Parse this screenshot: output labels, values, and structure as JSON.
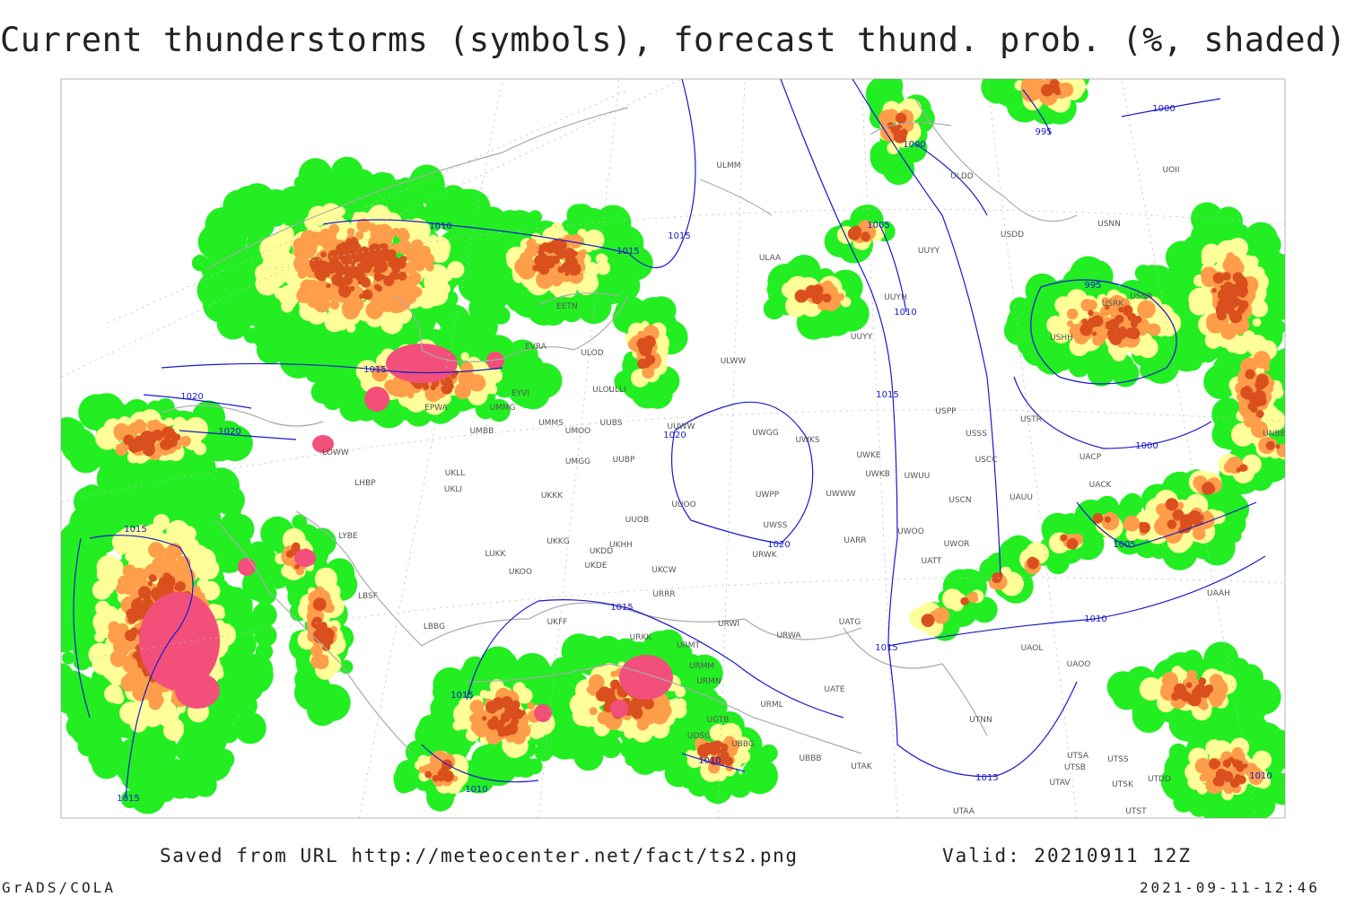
{
  "header": {
    "title": "Current thunderstorms (symbols), forecast thund. prob. (%, shaded)"
  },
  "isobars": [
    "1010",
    "1015",
    "1015",
    "1015",
    "1020",
    "1020",
    "1015",
    "1020",
    "1020",
    "1015",
    "1015",
    "1010",
    "1010",
    "1015",
    "1015",
    "1015",
    "1015",
    "1010",
    "1005",
    "1000",
    "995",
    "1000",
    "995",
    "1000",
    "1005",
    "1010",
    "1010"
  ],
  "stations": [
    "ULMM",
    "ULDD",
    "USDD",
    "ULAA",
    "UUYY",
    "UUYH",
    "UUYY",
    "ULWW",
    "ULOD",
    "ULOL",
    "EETN",
    "EVRA",
    "EYVI",
    "EPWA",
    "UMMG",
    "UMMS",
    "UMOO",
    "UUBS",
    "UMBB",
    "UWGG",
    "UWKS",
    "UWKE",
    "UWKB",
    "UWUU",
    "USSS",
    "USCC",
    "USTR",
    "UUWW",
    "UMGG",
    "UUBP",
    "UKLL",
    "UKLI",
    "UKKK",
    "UUOO",
    "UWPP",
    "UWWW",
    "USCN",
    "UAUU",
    "UACK",
    "UWSS",
    "UUOB",
    "UARR",
    "UWOO",
    "UWOR",
    "UATT",
    "LYBE",
    "LUKK",
    "UKHH",
    "UKDD",
    "UKKG",
    "UKDE",
    "UKCW",
    "UKOO",
    "URWK",
    "URRR",
    "LBSF",
    "LBBG",
    "UKFF",
    "URKK",
    "URWI",
    "UATG",
    "UAOL",
    "UAOO",
    "URMT",
    "URMM",
    "URMN",
    "URWA",
    "UATE",
    "UTNN",
    "URML",
    "UGTB",
    "UDSG",
    "UBBG",
    "UBBB",
    "UTAK",
    "UTSA",
    "UTSS",
    "UTSB",
    "UTAV",
    "UTSK",
    "UTAA",
    "UTDD",
    "UTST",
    "LHBP",
    "LOWW",
    "UAAH",
    "UNBB",
    "UOII",
    "USNN",
    "USPP",
    "USRK",
    "USNR",
    "USHH",
    "ULLI",
    "UACP"
  ],
  "footer": {
    "source": "Saved from URL http://meteocenter.net/fact/ts2.png",
    "valid": "Valid: 20210911 12Z",
    "software": "GrADS/COLA",
    "timestamp": "2021-09-11-12:46"
  }
}
